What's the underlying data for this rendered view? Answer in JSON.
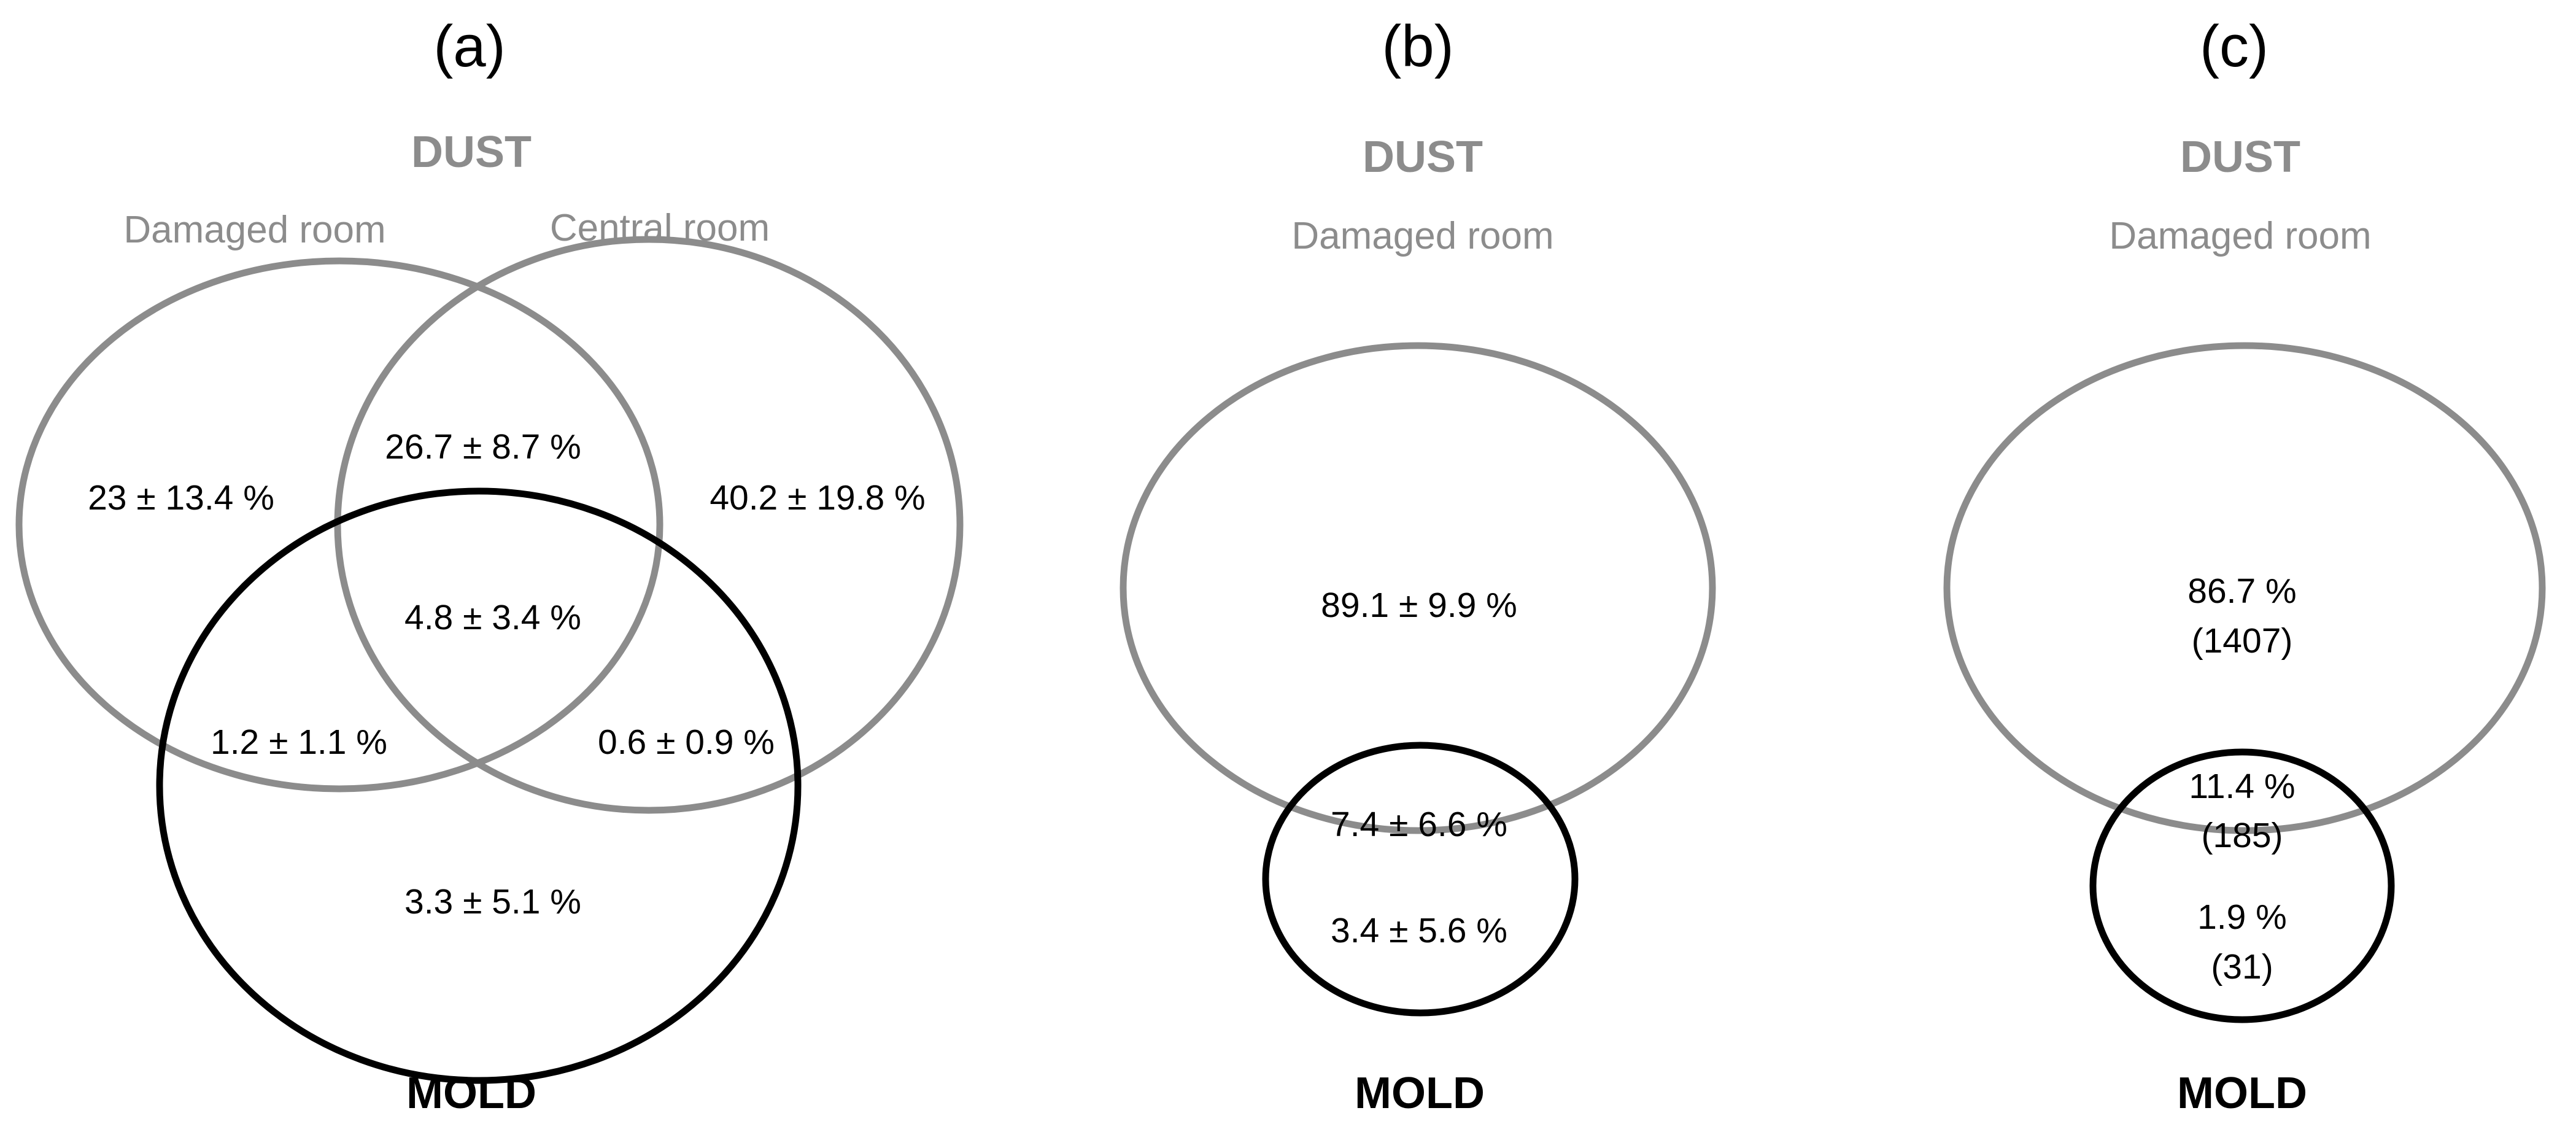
{
  "colors": {
    "dust": "#8c8c8c",
    "mold": "#000000",
    "text": "#000000"
  },
  "panels": {
    "a": {
      "label": "(a)",
      "dust_title": "DUST",
      "mold_title": "MOLD",
      "set_damaged": "Damaged room",
      "set_central": "Central room",
      "regions": {
        "damaged_only": "23 ± 13.4 %",
        "damaged_central": "26.7 ± 8.7 %",
        "central_only": "40.2 ± 19.8 %",
        "all_three": "4.8 ± 3.4 %",
        "damaged_mold": "1.2 ± 1.1 %",
        "central_mold": "0.6 ± 0.9 %",
        "mold_only": "3.3 ± 5.1 %"
      }
    },
    "b": {
      "label": "(b)",
      "dust_title": "DUST",
      "mold_title": "MOLD",
      "set_damaged": "Damaged room",
      "regions": {
        "dust_only": "89.1 ± 9.9 %",
        "overlap": "7.4 ± 6.6 %",
        "mold_only": "3.4 ± 5.6 %"
      }
    },
    "c": {
      "label": "(c)",
      "dust_title": "DUST",
      "mold_title": "MOLD",
      "set_damaged": "Damaged room",
      "regions": {
        "dust_only_pct": "86.7 %",
        "dust_only_count": "(1407)",
        "overlap_pct": "11.4 %",
        "overlap_count": "(185)",
        "mold_only_pct": "1.9 %",
        "mold_only_count": "(31)"
      }
    }
  }
}
